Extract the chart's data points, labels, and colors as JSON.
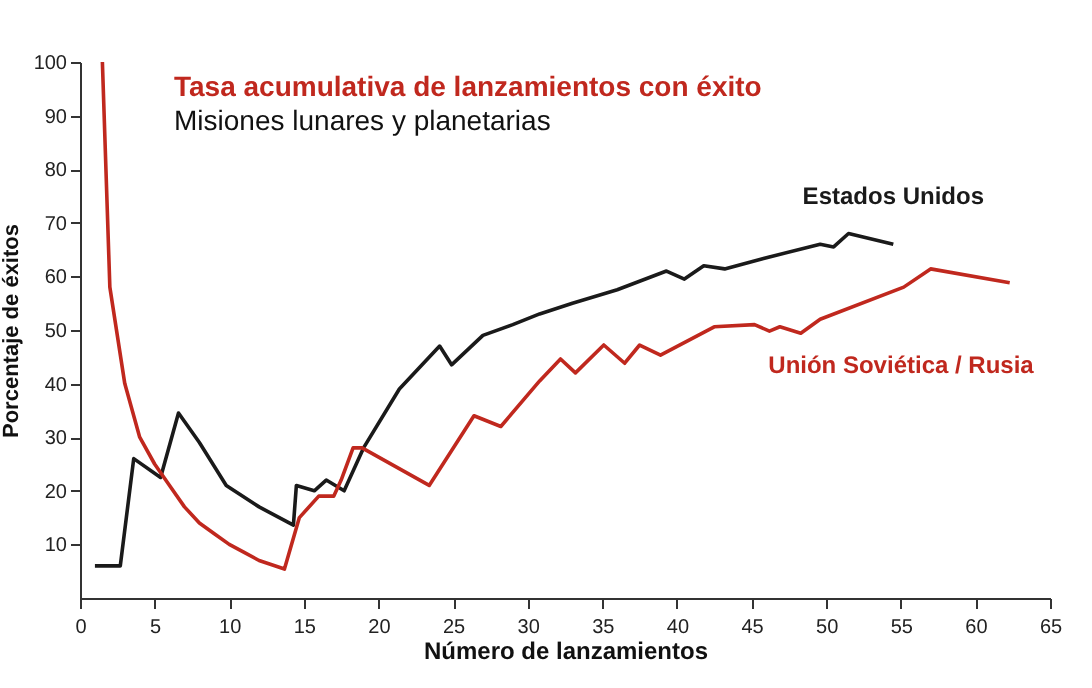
{
  "chart_data": {
    "type": "line",
    "title": "Tasa acumulativa de lanzamientos con éxito",
    "subtitle": "Misiones lunares y planetarias",
    "xlabel": "Número de lanzamientos",
    "ylabel": "Porcentaje de éxitos",
    "xlim": [
      0,
      65
    ],
    "xticks": [
      0,
      5,
      10,
      15,
      20,
      25,
      30,
      35,
      40,
      45,
      50,
      55,
      60,
      65
    ],
    "ylim": [
      0,
      100
    ],
    "yticks": [
      10,
      20,
      30,
      40,
      50,
      60,
      70,
      80,
      90,
      100
    ],
    "grid": false,
    "marker": "none",
    "line_style": "solid",
    "series": [
      {
        "name": "Estados Unidos",
        "color": "#1a1a1a",
        "x": [
          1,
          2.7,
          3.6,
          5.4,
          6.6,
          8,
          9.8,
          12,
          14.3,
          14.5,
          15.7,
          16.5,
          17.7,
          19,
          21.4,
          24.1,
          24.9,
          27,
          29,
          30.8,
          33,
          36,
          39.3,
          40.5,
          41.8,
          43.2,
          46,
          49.6,
          50.5,
          51.5,
          54.5
        ],
        "values": [
          6,
          6,
          26,
          22.5,
          34.5,
          29,
          21,
          17,
          13.6,
          21,
          20,
          22,
          20,
          28,
          39,
          47,
          43.5,
          49,
          51,
          53,
          55,
          57.5,
          61,
          59.5,
          62,
          61.4,
          63.5,
          66,
          65.5,
          68,
          66
        ]
      },
      {
        "name": "Unión Soviética / Rusia",
        "color": "#c0281e",
        "x": [
          1.5,
          2,
          3,
          4,
          5,
          6,
          7,
          8,
          9,
          10,
          11,
          12,
          13.7,
          14.7,
          16,
          17,
          17.5,
          18.3,
          18.9,
          23.4,
          26.4,
          28.2,
          30.8,
          32.2,
          33.2,
          35.1,
          36.5,
          37.5,
          38.9,
          42.5,
          45.2,
          46.2,
          46.9,
          48.3,
          49.6,
          55.2,
          57,
          62.3
        ],
        "values": [
          100,
          58,
          40,
          30,
          25,
          21,
          17,
          14,
          12,
          10,
          8.5,
          7,
          5.4,
          15,
          19,
          19,
          22,
          28,
          28,
          21,
          34,
          32,
          40.5,
          44.6,
          42,
          47.2,
          43.8,
          47.2,
          45.3,
          50.6,
          51,
          49.8,
          50.6,
          49.4,
          52,
          58,
          61.4,
          58.8
        ]
      }
    ]
  }
}
